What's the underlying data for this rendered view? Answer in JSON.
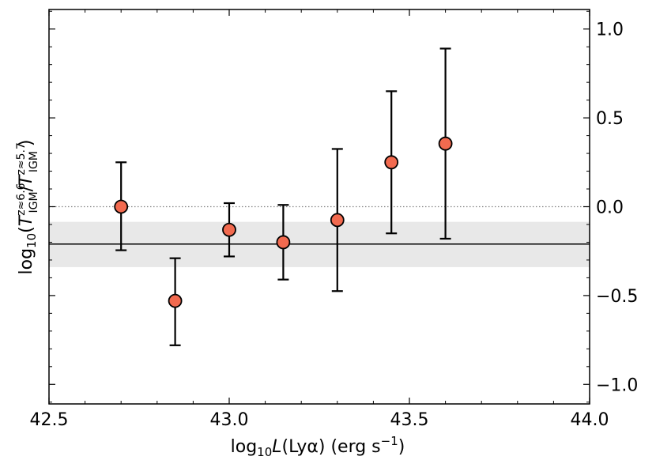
{
  "chart_data": {
    "type": "scatter",
    "title": "",
    "xlabel": {
      "prefix": "log",
      "sub": "10",
      "italic": "L",
      "rest": "(Lyα) (erg s",
      "sup": "−1",
      "close": ")"
    },
    "ylabel": {
      "prefix": "log",
      "sub": "10",
      "open": "(",
      "num_T": "T",
      "num_sup": "z≈6.6",
      "num_sub": "IGM",
      "slash": "/",
      "den_T": "T",
      "den_sup": "z≈5.7",
      "den_sub": "IGM",
      "close": ")"
    },
    "xlim": [
      42.5,
      44.0
    ],
    "ylim": [
      -1.11,
      1.11
    ],
    "xticks": [
      42.5,
      43.0,
      43.5,
      44.0
    ],
    "xtick_labels": [
      "42.5",
      "43.0",
      "43.5",
      "44.0"
    ],
    "yticks": [
      -1.0,
      -0.5,
      0.0,
      0.5,
      1.0
    ],
    "ytick_labels": [
      "−1.0",
      "−0.5",
      "0.0",
      "0.5",
      "1.0"
    ],
    "y_tick_side": "right",
    "grid": false,
    "points": [
      {
        "x": 42.7,
        "y": 0.0,
        "ylow": -0.245,
        "yhigh": 0.25
      },
      {
        "x": 42.85,
        "y": -0.53,
        "ylow": -0.78,
        "yhigh": -0.29
      },
      {
        "x": 43.0,
        "y": -0.13,
        "ylow": -0.28,
        "yhigh": 0.02
      },
      {
        "x": 43.15,
        "y": -0.2,
        "ylow": -0.41,
        "yhigh": 0.01
      },
      {
        "x": 43.3,
        "y": -0.075,
        "ylow": -0.475,
        "yhigh": 0.325
      },
      {
        "x": 43.45,
        "y": 0.25,
        "ylow": -0.15,
        "yhigh": 0.65
      },
      {
        "x": 43.6,
        "y": 0.355,
        "ylow": -0.18,
        "yhigh": 0.89
      }
    ],
    "reference_line": {
      "y": 0.0,
      "style": "dotted"
    },
    "mean_line": {
      "y": -0.21
    },
    "band": {
      "ylow": -0.34,
      "yhigh": -0.085
    },
    "colors": {
      "marker_fill": "#f26a4f",
      "marker_edge": "#000000",
      "errorbar": "#000000",
      "band": "#e8e8e8",
      "mean_line": "#000000",
      "reference_line": "#808080"
    }
  }
}
